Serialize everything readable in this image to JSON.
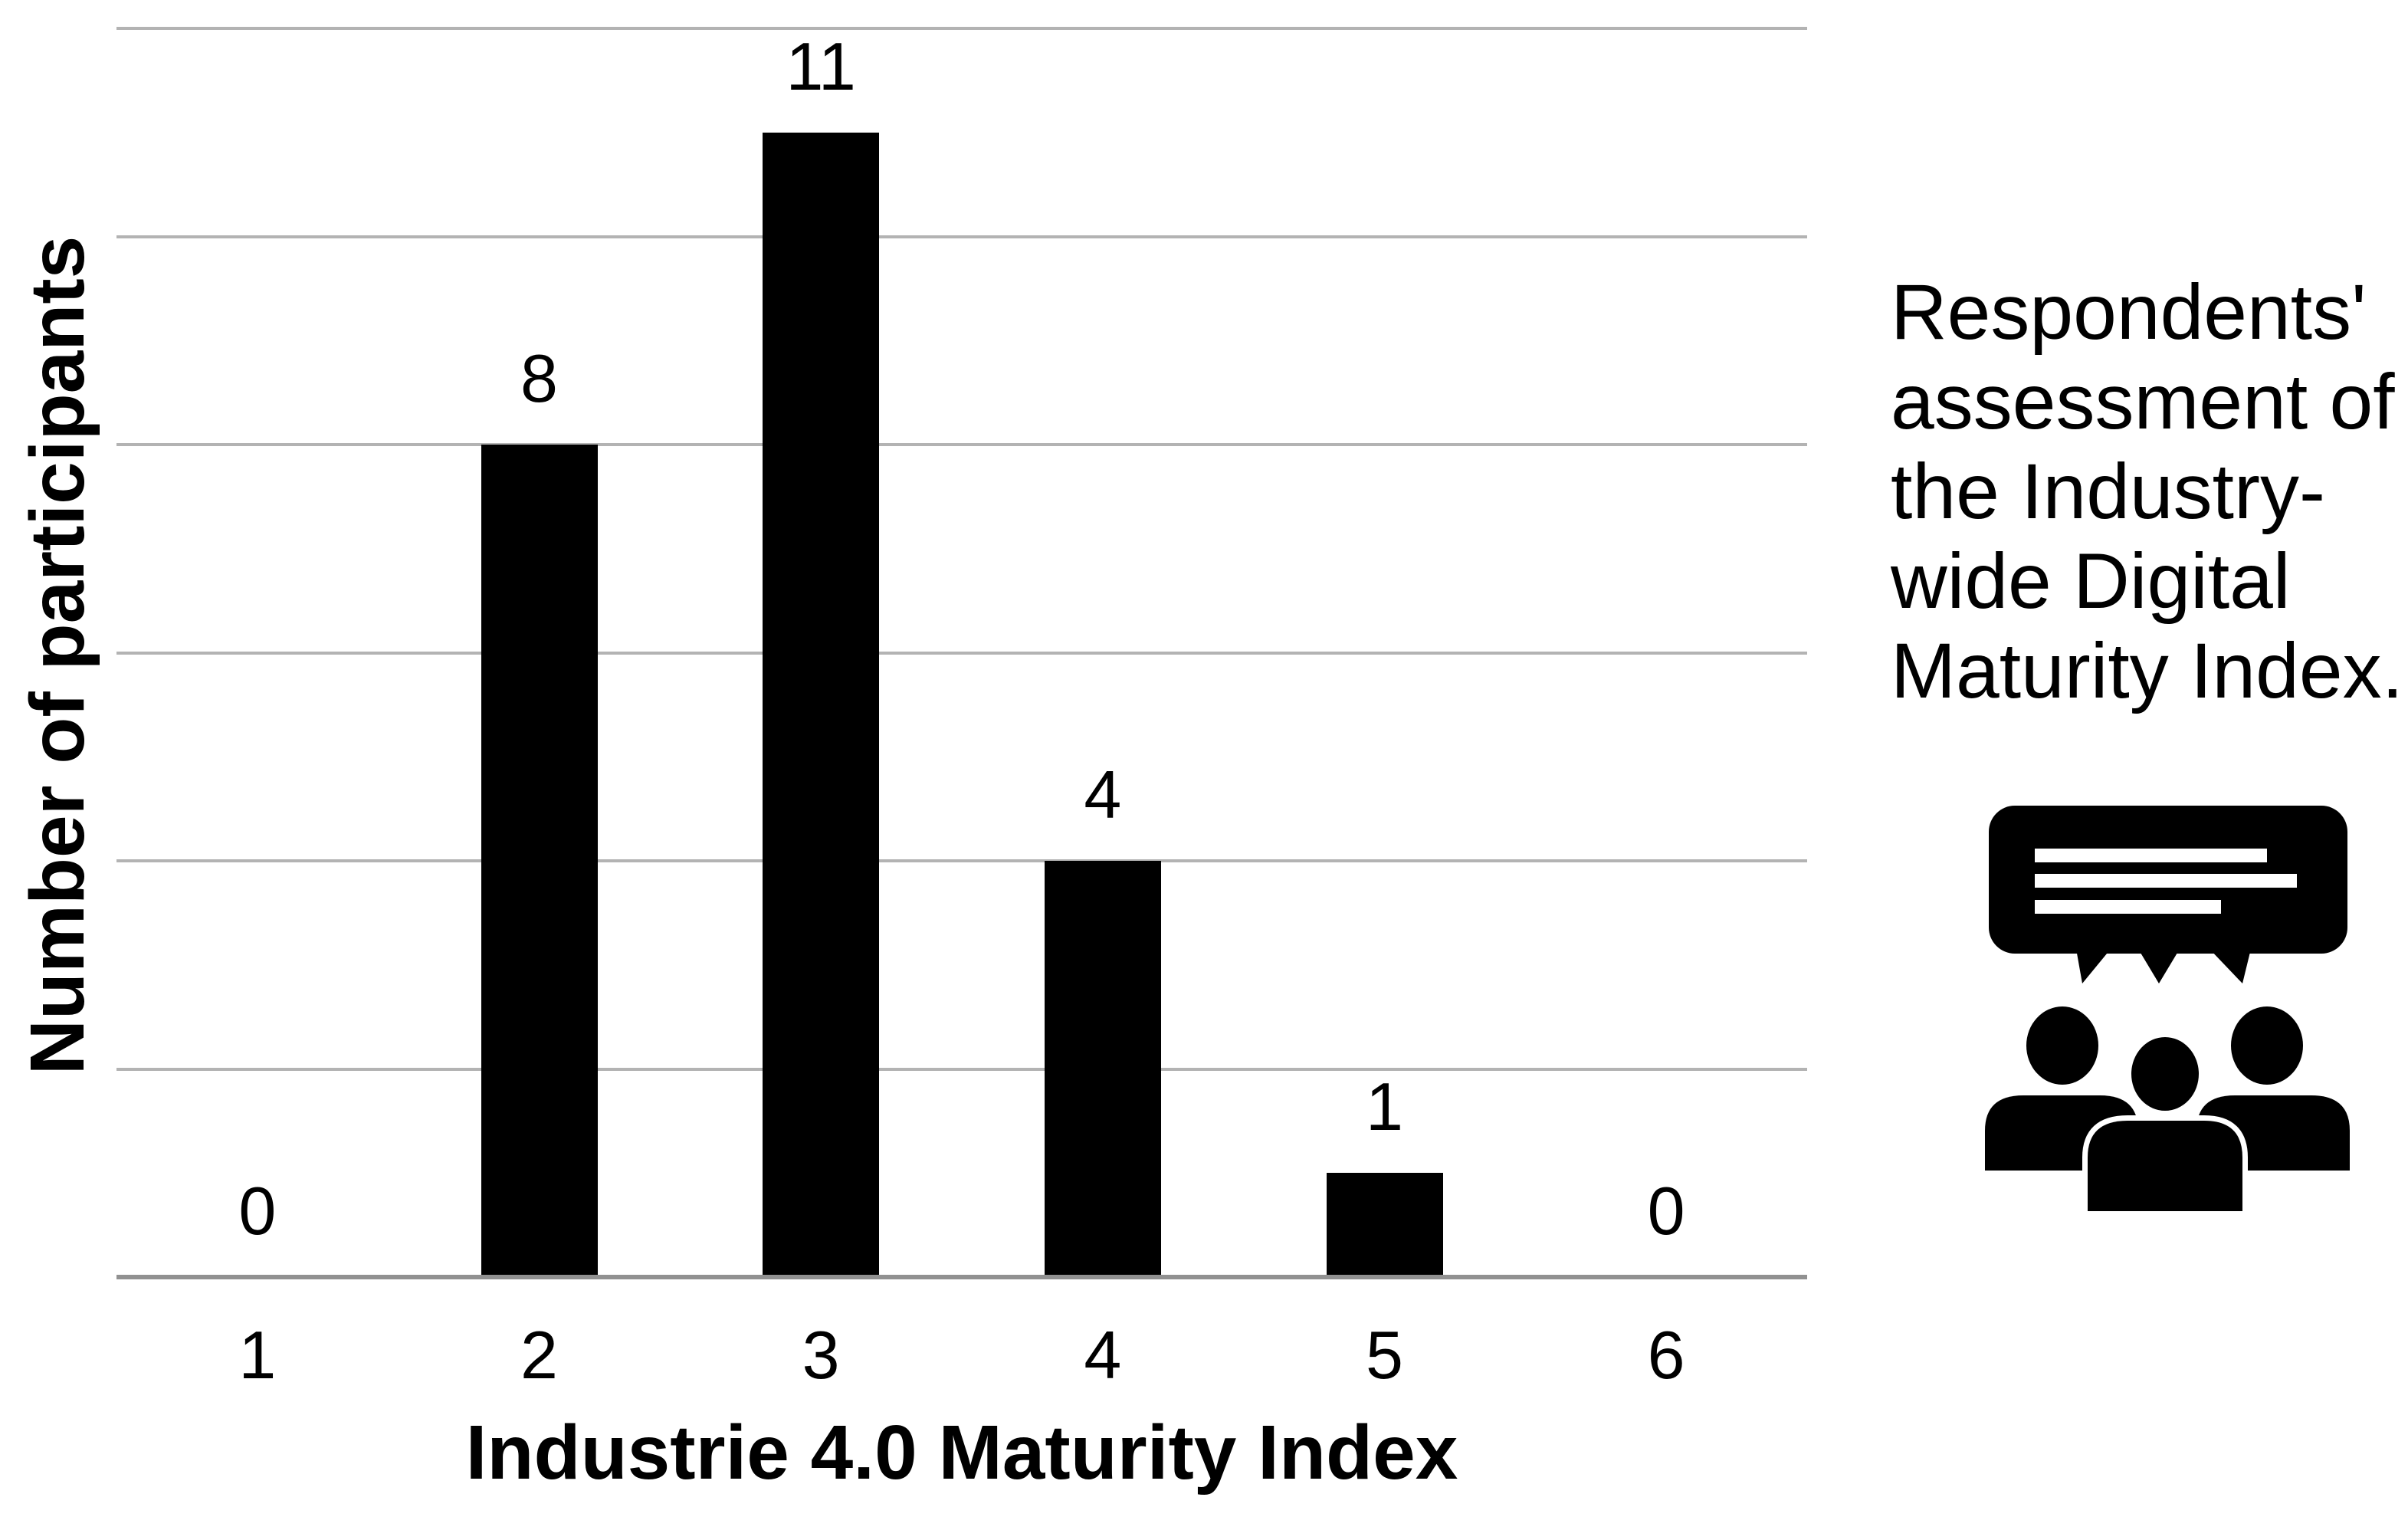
{
  "chart_data": {
    "type": "bar",
    "title": "",
    "categories": [
      "1",
      "2",
      "3",
      "4",
      "5",
      "6"
    ],
    "values": [
      0,
      8,
      11,
      4,
      1,
      0
    ],
    "data_labels": [
      "0",
      "8",
      "11",
      "4",
      "1",
      "0"
    ],
    "xlabel": "Industrie 4.0 Maturity Index",
    "ylabel": "Number of participants",
    "ylim": [
      0,
      12
    ],
    "gridline_step": 2,
    "grid": true,
    "legend": "none",
    "bar_color": "#000000"
  },
  "caption": {
    "lines": [
      "Respondents'",
      "assessment of",
      "the Industry-",
      "wide Digital",
      "Maturity Index."
    ]
  },
  "icon": {
    "name": "audience-feedback-icon",
    "color": "#000000"
  },
  "colors": {
    "background": "#ffffff",
    "bar": "#000000",
    "gridline": "#b3b3b3",
    "axis": "#919191",
    "text": "#000000"
  }
}
